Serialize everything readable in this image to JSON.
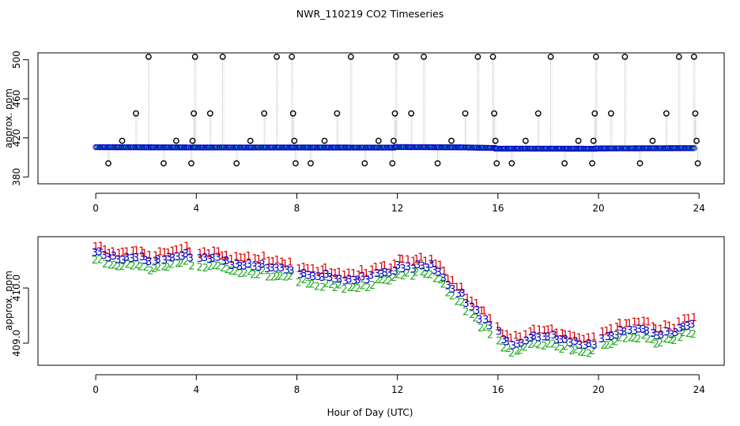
{
  "figure": {
    "title": "NWR_110219  CO2 Timeseries",
    "xlabel": "Hour of Day (UTC)"
  },
  "chart_data": [
    {
      "type": "scatter",
      "title": "NWR_110219  CO2 Timeseries",
      "ylabel": "approx. ppm",
      "xlim": [
        -2.3,
        25
      ],
      "ylim": [
        373,
        507
      ],
      "x_ticks": [
        "0",
        "4",
        "8",
        "12",
        "16",
        "20",
        "24"
      ],
      "y_ticks": [
        "380",
        "420",
        "460",
        "500"
      ],
      "grid": false,
      "baseline_segments": [
        {
          "x": [
            0.0,
            3.9
          ],
          "y": [
            410.5,
            410.2
          ]
        },
        {
          "x": [
            3.9,
            11.9
          ],
          "y": [
            410.2,
            410.1
          ]
        },
        {
          "x": [
            11.9,
            14.5
          ],
          "y": [
            410.6,
            410.3
          ]
        },
        {
          "x": [
            14.5,
            15.9
          ],
          "y": [
            410.3,
            409.6
          ]
        },
        {
          "x": [
            15.9,
            19.9
          ],
          "y": [
            409.0,
            408.9
          ]
        },
        {
          "x": [
            19.9,
            23.8
          ],
          "y": [
            409.2,
            409.5
          ]
        }
      ],
      "outliers": [
        {
          "x": 0.5,
          "y": 394
        },
        {
          "x": 1.05,
          "y": 417
        },
        {
          "x": 1.6,
          "y": 445
        },
        {
          "x": 2.1,
          "y": 503
        },
        {
          "x": 2.7,
          "y": 394
        },
        {
          "x": 3.2,
          "y": 417
        },
        {
          "x": 3.8,
          "y": 394
        },
        {
          "x": 3.85,
          "y": 417
        },
        {
          "x": 3.9,
          "y": 445
        },
        {
          "x": 3.95,
          "y": 503
        },
        {
          "x": 4.55,
          "y": 445
        },
        {
          "x": 5.05,
          "y": 503
        },
        {
          "x": 5.6,
          "y": 394
        },
        {
          "x": 6.15,
          "y": 417
        },
        {
          "x": 6.7,
          "y": 445
        },
        {
          "x": 7.2,
          "y": 503
        },
        {
          "x": 7.8,
          "y": 503
        },
        {
          "x": 7.85,
          "y": 445
        },
        {
          "x": 7.9,
          "y": 417
        },
        {
          "x": 7.95,
          "y": 394
        },
        {
          "x": 8.55,
          "y": 394
        },
        {
          "x": 9.1,
          "y": 417
        },
        {
          "x": 9.6,
          "y": 445
        },
        {
          "x": 10.15,
          "y": 503
        },
        {
          "x": 10.7,
          "y": 394
        },
        {
          "x": 11.25,
          "y": 417
        },
        {
          "x": 11.8,
          "y": 394
        },
        {
          "x": 11.85,
          "y": 417
        },
        {
          "x": 11.9,
          "y": 445
        },
        {
          "x": 11.95,
          "y": 503
        },
        {
          "x": 12.55,
          "y": 445
        },
        {
          "x": 13.05,
          "y": 503
        },
        {
          "x": 13.6,
          "y": 394
        },
        {
          "x": 14.15,
          "y": 417
        },
        {
          "x": 14.7,
          "y": 445
        },
        {
          "x": 15.2,
          "y": 503
        },
        {
          "x": 15.8,
          "y": 503
        },
        {
          "x": 15.85,
          "y": 445
        },
        {
          "x": 15.9,
          "y": 417
        },
        {
          "x": 15.95,
          "y": 394
        },
        {
          "x": 16.55,
          "y": 394
        },
        {
          "x": 17.1,
          "y": 417
        },
        {
          "x": 17.6,
          "y": 445
        },
        {
          "x": 18.1,
          "y": 503
        },
        {
          "x": 18.65,
          "y": 394
        },
        {
          "x": 19.2,
          "y": 417
        },
        {
          "x": 19.75,
          "y": 394
        },
        {
          "x": 19.8,
          "y": 417
        },
        {
          "x": 19.85,
          "y": 445
        },
        {
          "x": 19.9,
          "y": 503
        },
        {
          "x": 20.5,
          "y": 445
        },
        {
          "x": 21.05,
          "y": 503
        },
        {
          "x": 21.65,
          "y": 394
        },
        {
          "x": 22.15,
          "y": 417
        },
        {
          "x": 22.7,
          "y": 445
        },
        {
          "x": 23.2,
          "y": 503
        },
        {
          "x": 23.8,
          "y": 503
        },
        {
          "x": 23.85,
          "y": 445
        },
        {
          "x": 23.9,
          "y": 417
        },
        {
          "x": 23.95,
          "y": 394
        }
      ]
    },
    {
      "type": "scatter",
      "ylabel": "approx. ppm",
      "xlim": [
        -2.3,
        25
      ],
      "ylim": [
        408.6,
        410.93
      ],
      "x_ticks": [
        "0",
        "4",
        "8",
        "12",
        "16",
        "20",
        "24"
      ],
      "y_ticks": [
        "409.0",
        "410.0"
      ],
      "grid": false,
      "series": [
        {
          "symbol": "1",
          "color": "#dd0000",
          "offset": 0.12
        },
        {
          "symbol": "2",
          "color": "#22aa22",
          "offset": -0.14
        },
        {
          "symbol": "3",
          "color": "#0000cc",
          "offset": 0.0
        }
      ],
      "anchors": {
        "x": [
          0.0,
          0.5,
          1.0,
          1.5,
          2.0,
          2.5,
          3.0,
          3.5,
          3.9,
          4.0,
          4.5,
          5.0,
          5.5,
          6.0,
          6.5,
          7.0,
          7.5,
          7.9,
          8.0,
          8.5,
          9.0,
          9.5,
          10.0,
          10.5,
          11.0,
          11.5,
          11.95,
          12.0,
          12.5,
          13.0,
          13.5,
          14.0,
          14.5,
          15.0,
          15.5,
          15.8,
          16.0,
          16.5,
          17.0,
          17.5,
          18.0,
          18.5,
          19.0,
          19.5,
          19.8,
          20.0,
          20.5,
          21.0,
          21.5,
          22.0,
          22.5,
          23.0,
          23.5,
          23.8
        ],
        "y": [
          410.65,
          410.58,
          410.55,
          410.6,
          410.48,
          410.52,
          410.6,
          410.65,
          410.55,
          410.58,
          410.52,
          410.5,
          410.47,
          410.43,
          410.42,
          410.38,
          410.35,
          410.3,
          410.28,
          410.25,
          410.22,
          410.2,
          410.15,
          410.18,
          410.22,
          410.28,
          410.35,
          410.45,
          410.4,
          410.42,
          410.35,
          410.1,
          409.9,
          409.6,
          409.42,
          409.3,
          409.2,
          409.0,
          409.05,
          409.12,
          409.15,
          409.05,
          409.02,
          409.0,
          408.95,
          409.08,
          409.1,
          409.25,
          409.28,
          409.2,
          409.18,
          409.2,
          409.3,
          409.35
        ]
      }
    }
  ]
}
